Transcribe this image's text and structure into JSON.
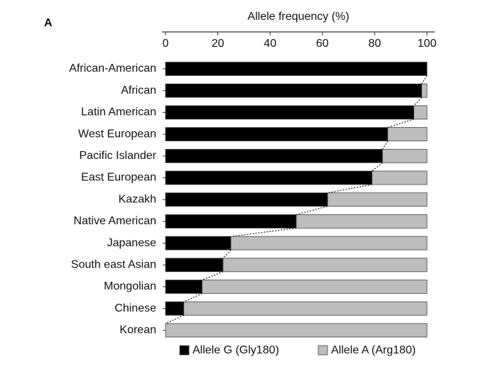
{
  "chart_data": {
    "type": "stacked-bar-horizontal",
    "panel_label": "A",
    "title": "Allele frequency (%)",
    "categories": [
      "African-American",
      "African",
      "Latin American",
      "West European",
      "Pacific Islander",
      "East European",
      "Kazakh",
      "Native American",
      "Japanese",
      "South east Asian",
      "Mongolian",
      "Chinese",
      "Korean"
    ],
    "series": [
      {
        "name": "Allele G (Gly180)",
        "color": "#000000",
        "values": [
          100,
          98,
          95,
          85,
          83,
          79,
          62,
          50,
          25,
          22,
          14,
          7,
          0
        ]
      },
      {
        "name": "Allele A (Arg180)",
        "color": "#bdbdbd",
        "values": [
          0,
          2,
          5,
          15,
          17,
          21,
          38,
          50,
          75,
          78,
          86,
          93,
          100
        ]
      }
    ],
    "xlim": [
      0,
      100
    ],
    "xticks": [
      0,
      20,
      40,
      60,
      80,
      100
    ],
    "connector": true
  }
}
